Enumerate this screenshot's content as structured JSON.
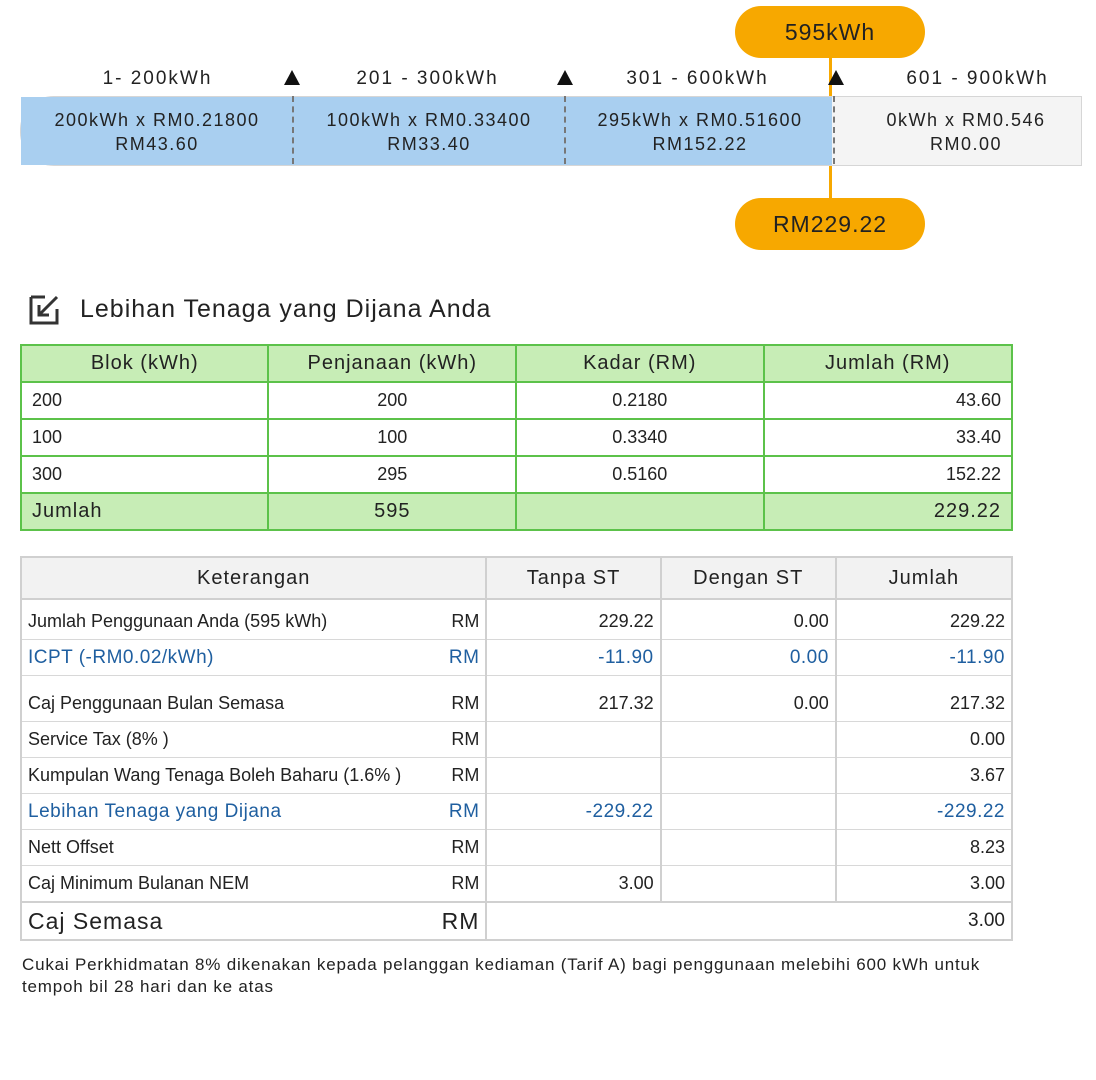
{
  "tiers": {
    "usage_label": "595kWh",
    "total_label": "RM229.22",
    "ranges": [
      "1- 200kWh",
      "201 - 300kWh",
      "301 - 600kWh",
      "601 - 900kWh"
    ],
    "segments": [
      {
        "calc": "200kWh x RM0.21800",
        "amount": "RM43.60"
      },
      {
        "calc": "100kWh x RM0.33400",
        "amount": "RM33.40"
      },
      {
        "calc": "295kWh x RM0.51600",
        "amount": "RM152.22"
      },
      {
        "calc": "0kWh x RM0.546",
        "amount": "RM0.00"
      }
    ]
  },
  "section": {
    "title": "Lebihan Tenaga yang Dijana Anda",
    "icon": "edit-square-icon"
  },
  "generation_table": {
    "headers": [
      "Blok (kWh)",
      "Penjanaan (kWh)",
      "Kadar (RM)",
      "Jumlah (RM)"
    ],
    "rows": [
      [
        "200",
        "200",
        "0.2180",
        "43.60"
      ],
      [
        "100",
        "100",
        "0.3340",
        "33.40"
      ],
      [
        "300",
        "295",
        "0.5160",
        "152.22"
      ]
    ],
    "total": {
      "label": "Jumlah",
      "generation": "595",
      "rate": "",
      "amount": "229.22"
    }
  },
  "charges_table": {
    "headers": [
      "Keterangan",
      "Tanpa ST",
      "Dengan ST",
      "Jumlah"
    ],
    "rows": [
      {
        "desc": "Jumlah Penggunaan Anda (595 kWh)",
        "cur": "RM",
        "tanpa": "229.22",
        "dengan": "0.00",
        "jumlah": "229.22",
        "style": "normal"
      },
      {
        "desc": "ICPT (-RM0.02/kWh)",
        "cur": "RM",
        "tanpa": "-11.90",
        "dengan": "0.00",
        "jumlah": "-11.90",
        "style": "blue"
      },
      {
        "desc": "Caj Penggunaan Bulan Semasa",
        "cur": "RM",
        "tanpa": "217.32",
        "dengan": "0.00",
        "jumlah": "217.32",
        "style": "normal"
      },
      {
        "desc": "Service Tax (8% )",
        "cur": "RM",
        "tanpa": "",
        "dengan": "",
        "jumlah": "0.00",
        "style": "normal"
      },
      {
        "desc": "Kumpulan Wang Tenaga Boleh Baharu (1.6% )",
        "cur": "RM",
        "tanpa": "",
        "dengan": "",
        "jumlah": "3.67",
        "style": "normal"
      },
      {
        "desc": "Lebihan Tenaga yang Dijana",
        "cur": "RM",
        "tanpa": "-229.22",
        "dengan": "",
        "jumlah": "-229.22",
        "style": "blue"
      },
      {
        "desc": "Nett Offset",
        "cur": "RM",
        "tanpa": "",
        "dengan": "",
        "jumlah": "8.23",
        "style": "normal"
      },
      {
        "desc": "Caj Minimum Bulanan NEM",
        "cur": "RM",
        "tanpa": "3.00",
        "dengan": "",
        "jumlah": "3.00",
        "style": "normal"
      }
    ],
    "final": {
      "label": "Caj Semasa",
      "cur": "RM",
      "amount": "3.00"
    }
  },
  "footnote": "Cukai Perkhidmatan 8%  dikenakan kepada pelanggan kediaman (Tarif A) bagi penggunaan melebihi 600 kWh untuk tempoh bil 28 hari dan ke atas",
  "colors": {
    "accent": "#f7a800",
    "bar_fill": "#a9cff0",
    "green_border": "#5cc24a",
    "green_fill": "#c7edb6",
    "blue_text": "#1f5fa0"
  }
}
